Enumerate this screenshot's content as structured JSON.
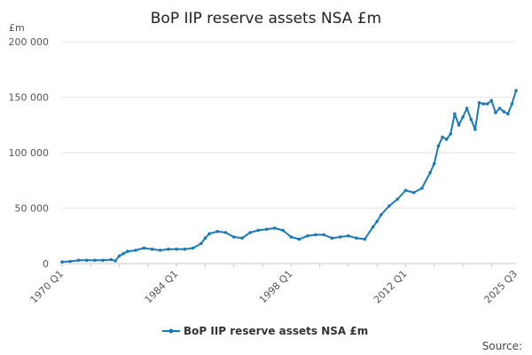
{
  "chart_data": {
    "type": "line",
    "title": "BoP IIP reserve assets NSA £m",
    "ylabel": "£m",
    "xlabel": "",
    "ylim": [
      0,
      200000
    ],
    "yticks": [
      0,
      50000,
      100000,
      150000,
      200000
    ],
    "ytick_labels": [
      "0",
      "50 000",
      "100 000",
      "150 000",
      "200 000"
    ],
    "x_range": [
      1970.0,
      2025.5
    ],
    "xtick_labels": [
      {
        "label": "1970 Q1",
        "x": 1970.0
      },
      {
        "label": "1984 Q1",
        "x": 1984.0
      },
      {
        "label": "1998 Q1",
        "x": 1998.0
      },
      {
        "label": "2012 Q1",
        "x": 2012.0
      },
      {
        "label": "2025 Q3",
        "x": 2025.5
      }
    ],
    "minor_tick_step_years": 3.5,
    "legend": "bottom-center",
    "source_label": "Source:",
    "series": [
      {
        "name": "BoP IIP reserve assets NSA £m",
        "color": "#1a7ab8",
        "x": [
          1970,
          1971,
          1972,
          1973,
          1974,
          1975,
          1976,
          1976.5,
          1977,
          1977.5,
          1978,
          1979,
          1980,
          1981,
          1982,
          1983,
          1984,
          1985,
          1986,
          1987,
          1987.5,
          1988,
          1989,
          1990,
          1991,
          1992,
          1993,
          1994,
          1995,
          1996,
          1997,
          1998,
          1999,
          2000,
          2001,
          2002,
          2003,
          2004,
          2005,
          2006,
          2007,
          2008,
          2008.5,
          2009,
          2010,
          2011,
          2012,
          2013,
          2014,
          2015,
          2015.5,
          2016,
          2016.5,
          2017,
          2017.5,
          2018,
          2018.5,
          2019,
          2019.5,
          2020,
          2020.5,
          2021,
          2021.5,
          2022,
          2022.5,
          2023,
          2023.5,
          2024,
          2024.5,
          2025,
          2025.5
        ],
        "y": [
          1500,
          2000,
          3000,
          3000,
          3000,
          3000,
          3500,
          2500,
          7000,
          9000,
          11000,
          12000,
          14000,
          13000,
          12000,
          13000,
          13000,
          13000,
          14000,
          18000,
          23000,
          27000,
          29000,
          28000,
          24000,
          23000,
          28000,
          30000,
          31000,
          32000,
          30000,
          24000,
          22000,
          25000,
          26000,
          26000,
          23000,
          24000,
          25000,
          23000,
          22000,
          33000,
          38000,
          44000,
          52000,
          58000,
          66000,
          64000,
          68000,
          82000,
          90000,
          106000,
          114000,
          112000,
          117000,
          135000,
          125000,
          132000,
          140000,
          130000,
          121000,
          145000,
          144000,
          144000,
          147000,
          136000,
          140000,
          137000,
          135000,
          144000,
          156000
        ]
      }
    ]
  }
}
